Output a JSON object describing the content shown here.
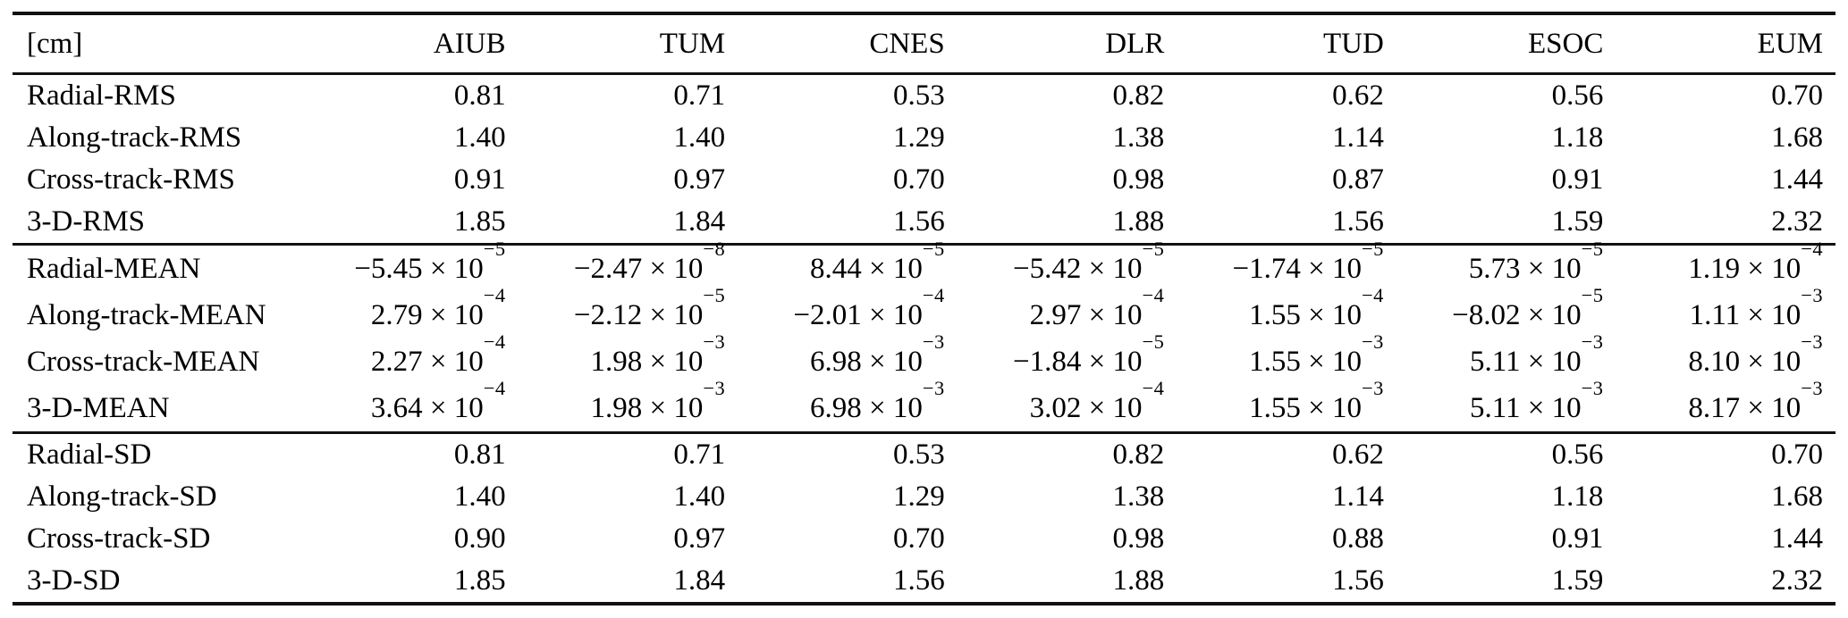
{
  "table": {
    "unit_label": "[cm]",
    "sci_infix": " × 10",
    "columns": [
      "AIUB",
      "TUM",
      "CNES",
      "DLR",
      "TUD",
      "ESOC",
      "EUM"
    ],
    "sections": [
      {
        "id": "rms",
        "rows": [
          {
            "label": "Radial-RMS",
            "values": [
              "0.81",
              "0.71",
              "0.53",
              "0.82",
              "0.62",
              "0.56",
              "0.70"
            ]
          },
          {
            "label": "Along-track-RMS",
            "values": [
              "1.40",
              "1.40",
              "1.29",
              "1.38",
              "1.14",
              "1.18",
              "1.68"
            ]
          },
          {
            "label": "Cross-track-RMS",
            "values": [
              "0.91",
              "0.97",
              "0.70",
              "0.98",
              "0.87",
              "0.91",
              "1.44"
            ]
          },
          {
            "label": "3-D-RMS",
            "values": [
              "1.85",
              "1.84",
              "1.56",
              "1.88",
              "1.56",
              "1.59",
              "2.32"
            ]
          }
        ]
      },
      {
        "id": "mean",
        "rows": [
          {
            "label": "Radial-MEAN",
            "values": [
              {
                "m": "−5.45",
                "e": "−5"
              },
              {
                "m": "−2.47",
                "e": "−8"
              },
              {
                "m": "8.44",
                "e": "−5"
              },
              {
                "m": "−5.42",
                "e": "−5"
              },
              {
                "m": "−1.74",
                "e": "−5"
              },
              {
                "m": "5.73",
                "e": "−5"
              },
              {
                "m": "1.19",
                "e": "−4"
              }
            ]
          },
          {
            "label": "Along-track-MEAN",
            "values": [
              {
                "m": "2.79",
                "e": "−4"
              },
              {
                "m": "−2.12",
                "e": "−5"
              },
              {
                "m": "−2.01",
                "e": "−4"
              },
              {
                "m": "2.97",
                "e": "−4"
              },
              {
                "m": "1.55",
                "e": "−4"
              },
              {
                "m": "−8.02",
                "e": "−5"
              },
              {
                "m": "1.11",
                "e": "−3"
              }
            ]
          },
          {
            "label": "Cross-track-MEAN",
            "values": [
              {
                "m": "2.27",
                "e": "−4"
              },
              {
                "m": "1.98",
                "e": "−3"
              },
              {
                "m": "6.98",
                "e": "−3"
              },
              {
                "m": "−1.84",
                "e": "−5"
              },
              {
                "m": "1.55",
                "e": "−3"
              },
              {
                "m": "5.11",
                "e": "−3"
              },
              {
                "m": "8.10",
                "e": "−3"
              }
            ]
          },
          {
            "label": "3-D-MEAN",
            "values": [
              {
                "m": "3.64",
                "e": "−4"
              },
              {
                "m": "1.98",
                "e": "−3"
              },
              {
                "m": "6.98",
                "e": "−3"
              },
              {
                "m": "3.02",
                "e": "−4"
              },
              {
                "m": "1.55",
                "e": "−3"
              },
              {
                "m": "5.11",
                "e": "−3"
              },
              {
                "m": "8.17",
                "e": "−3"
              }
            ]
          }
        ]
      },
      {
        "id": "sd",
        "rows": [
          {
            "label": "Radial-SD",
            "values": [
              "0.81",
              "0.71",
              "0.53",
              "0.82",
              "0.62",
              "0.56",
              "0.70"
            ]
          },
          {
            "label": "Along-track-SD",
            "values": [
              "1.40",
              "1.40",
              "1.29",
              "1.38",
              "1.14",
              "1.18",
              "1.68"
            ]
          },
          {
            "label": "Cross-track-SD",
            "values": [
              "0.90",
              "0.97",
              "0.70",
              "0.98",
              "0.88",
              "0.91",
              "1.44"
            ]
          },
          {
            "label": "3-D-SD",
            "values": [
              "1.85",
              "1.84",
              "1.56",
              "1.88",
              "1.56",
              "1.59",
              "2.32"
            ]
          }
        ]
      }
    ]
  }
}
